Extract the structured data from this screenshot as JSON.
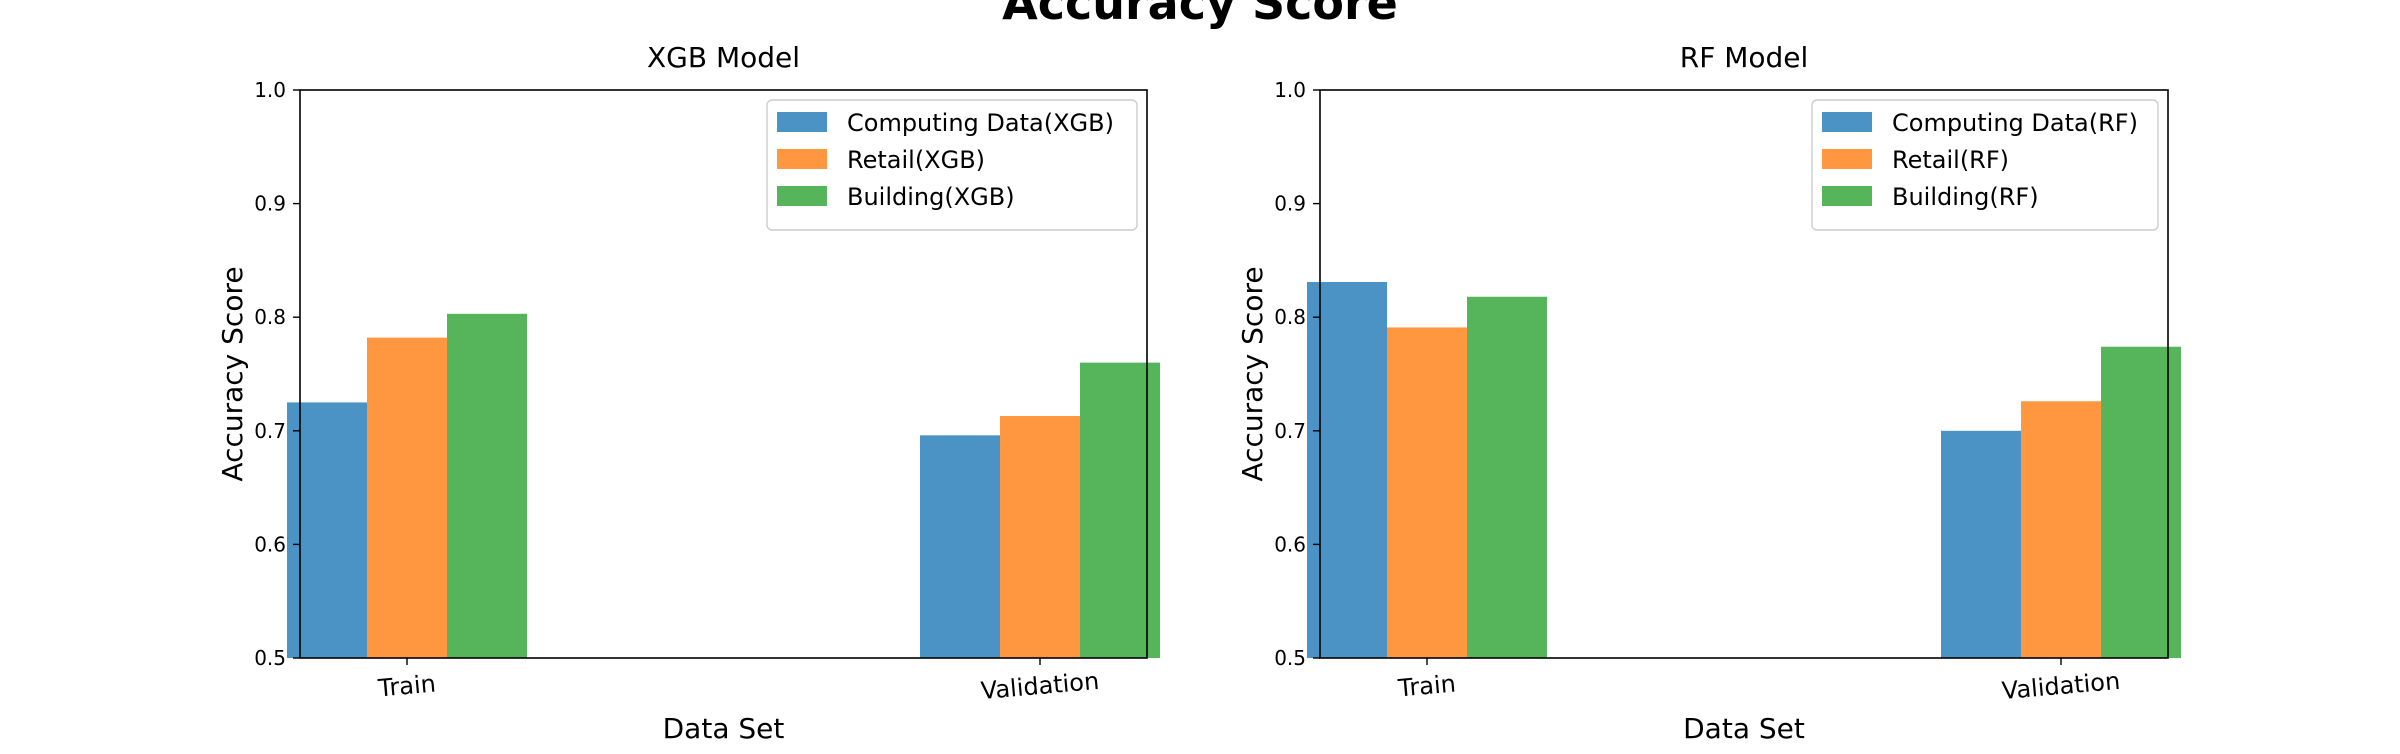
{
  "figure": {
    "title": "Accuracy Score"
  },
  "colors": {
    "computing": "#4c93c5",
    "retail": "#fe973f",
    "building": "#56b45a"
  },
  "chart_data": [
    {
      "type": "bar",
      "title": "XGB Model",
      "xlabel": "Data Set",
      "ylabel": "Accuracy Score",
      "categories": [
        "Train",
        "Validation"
      ],
      "ylim": [
        0.5,
        1.0
      ],
      "yticks": [
        "0.5",
        "0.6",
        "0.7",
        "0.8",
        "0.9",
        "1.0"
      ],
      "legend_position": "top-right",
      "grid": false,
      "series": [
        {
          "name": "Computing Data(XGB)",
          "color": "#4c93c5",
          "values": [
            0.725,
            0.696
          ]
        },
        {
          "name": "Retail(XGB)",
          "color": "#fe973f",
          "values": [
            0.782,
            0.713
          ]
        },
        {
          "name": "Building(XGB)",
          "color": "#56b45a",
          "values": [
            0.803,
            0.76
          ]
        }
      ]
    },
    {
      "type": "bar",
      "title": "RF Model",
      "xlabel": "Data Set",
      "ylabel": "Accuracy Score",
      "categories": [
        "Train",
        "Validation"
      ],
      "ylim": [
        0.5,
        1.0
      ],
      "yticks": [
        "0.5",
        "0.6",
        "0.7",
        "0.8",
        "0.9",
        "1.0"
      ],
      "legend_position": "top-right",
      "grid": false,
      "series": [
        {
          "name": "Computing Data(RF)",
          "color": "#4c93c5",
          "values": [
            0.831,
            0.7
          ]
        },
        {
          "name": "Retail(RF)",
          "color": "#fe973f",
          "values": [
            0.791,
            0.726
          ]
        },
        {
          "name": "Building(RF)",
          "color": "#56b45a",
          "values": [
            0.818,
            0.774
          ]
        }
      ]
    }
  ]
}
